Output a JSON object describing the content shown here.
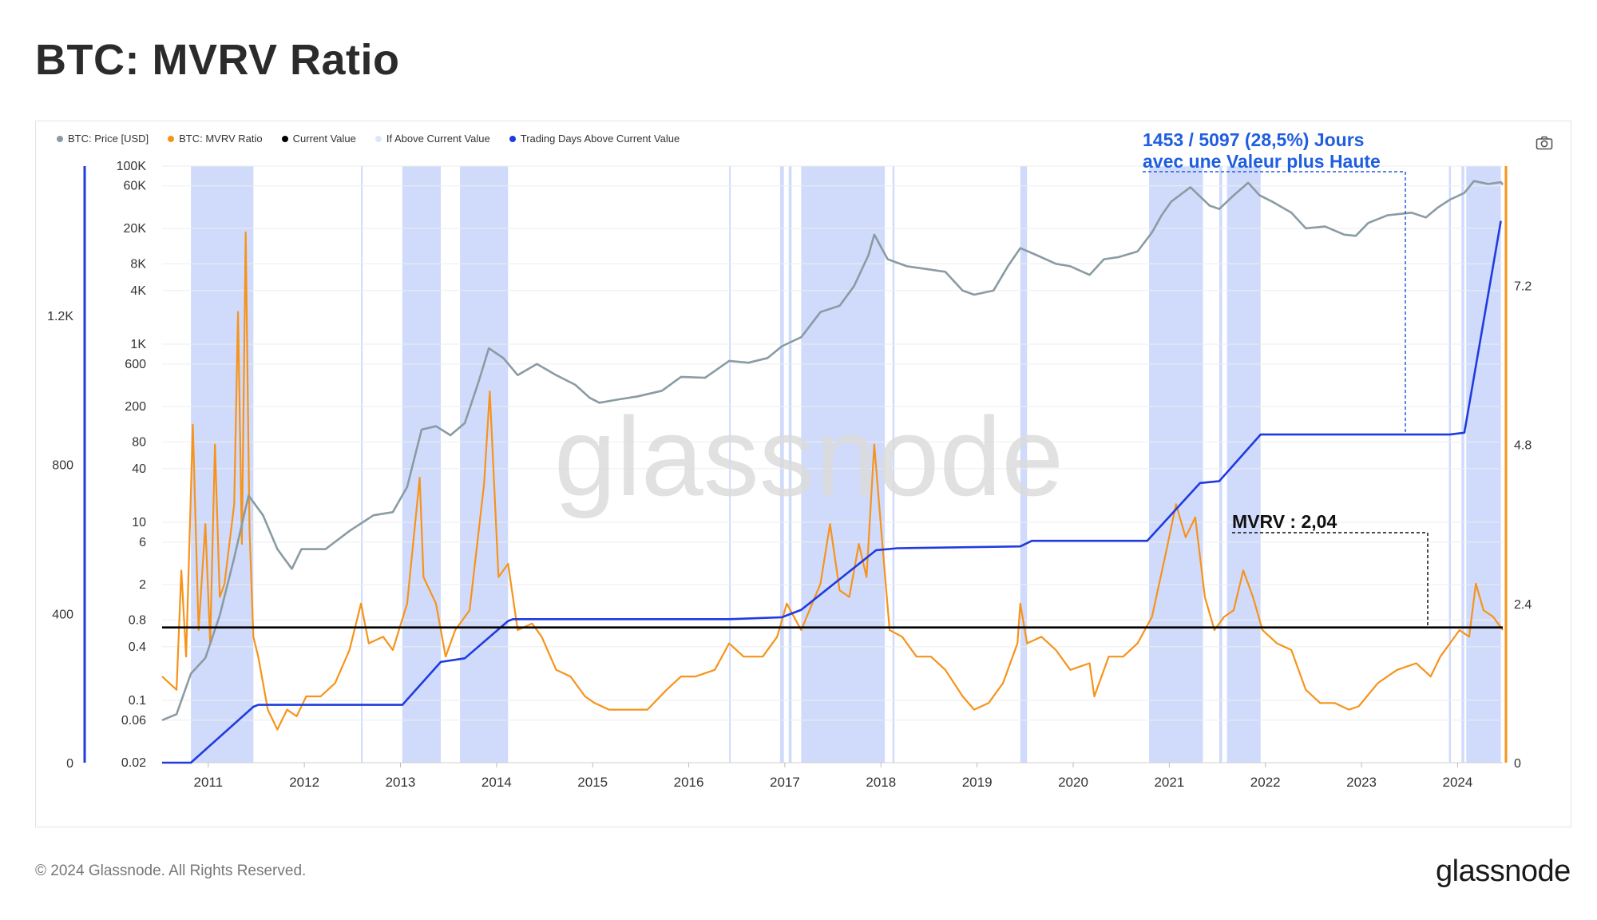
{
  "header": {
    "title": "BTC: MVRV Ratio"
  },
  "footer": {
    "copyright": "© 2024 Glassnode. All Rights Reserved.",
    "logo_text": "glassnode"
  },
  "watermark": "glassnode",
  "legend": [
    {
      "label": "BTC: Price [USD]",
      "color": "#8a9ba3"
    },
    {
      "label": "BTC: MVRV Ratio",
      "color": "#f7931a"
    },
    {
      "label": "Current Value",
      "color": "#000000"
    },
    {
      "label": "If Above Current Value",
      "color": "#dce6fb"
    },
    {
      "label": "Trading Days Above Current Value",
      "color": "#1f3be0"
    }
  ],
  "annotations": {
    "days_line1": "1453 / 5097 (28,5%) Jours",
    "days_line2": "avec une Valeur plus Haute",
    "mvrv_label": "MVRV : 2,04"
  },
  "icons": {
    "camera": "camera-icon"
  },
  "chart_data": {
    "type": "line",
    "x_ticks": [
      "2011",
      "2012",
      "2013",
      "2014",
      "2015",
      "2016",
      "2017",
      "2018",
      "2019",
      "2020",
      "2021",
      "2022",
      "2023",
      "2024"
    ],
    "price_axis": {
      "scale": "log",
      "tick_labels": [
        "100K",
        "60K",
        "20K",
        "8K",
        "4K",
        "1K",
        "600",
        "200",
        "80",
        "40",
        "10",
        "6",
        "2",
        "0.8",
        "0.4",
        "0.1",
        "0.06",
        "0.02"
      ]
    },
    "left_axis_ticks": [
      "1.2K",
      "800",
      "400",
      "0"
    ],
    "mvrv_axis_ticks": [
      "7.2",
      "4.8",
      "2.4",
      "0"
    ],
    "current_value": 2.04,
    "above_days": 1453,
    "total_days": 5097,
    "series": [
      {
        "name": "BTC: Price [USD]",
        "color": "#8a9ba3",
        "points": [
          [
            2010.55,
            0.06
          ],
          [
            2010.7,
            0.07
          ],
          [
            2010.85,
            0.2
          ],
          [
            2011.0,
            0.3
          ],
          [
            2011.15,
            0.9
          ],
          [
            2011.3,
            4
          ],
          [
            2011.45,
            20
          ],
          [
            2011.6,
            12
          ],
          [
            2011.75,
            5
          ],
          [
            2011.9,
            3
          ],
          [
            2012.0,
            5
          ],
          [
            2012.25,
            5
          ],
          [
            2012.5,
            8
          ],
          [
            2012.75,
            12
          ],
          [
            2012.95,
            13
          ],
          [
            2013.1,
            25
          ],
          [
            2013.25,
            110
          ],
          [
            2013.4,
            120
          ],
          [
            2013.55,
            95
          ],
          [
            2013.7,
            130
          ],
          [
            2013.85,
            400
          ],
          [
            2013.95,
            900
          ],
          [
            2014.1,
            700
          ],
          [
            2014.25,
            450
          ],
          [
            2014.45,
            600
          ],
          [
            2014.65,
            450
          ],
          [
            2014.85,
            350
          ],
          [
            2015.0,
            250
          ],
          [
            2015.1,
            220
          ],
          [
            2015.3,
            240
          ],
          [
            2015.5,
            260
          ],
          [
            2015.75,
            300
          ],
          [
            2015.95,
            430
          ],
          [
            2016.2,
            420
          ],
          [
            2016.45,
            650
          ],
          [
            2016.65,
            620
          ],
          [
            2016.85,
            700
          ],
          [
            2017.0,
            950
          ],
          [
            2017.2,
            1200
          ],
          [
            2017.4,
            2300
          ],
          [
            2017.6,
            2700
          ],
          [
            2017.75,
            4500
          ],
          [
            2017.9,
            10000
          ],
          [
            2017.96,
            17000
          ],
          [
            2018.1,
            9000
          ],
          [
            2018.3,
            7500
          ],
          [
            2018.5,
            7000
          ],
          [
            2018.7,
            6500
          ],
          [
            2018.88,
            4000
          ],
          [
            2019.0,
            3600
          ],
          [
            2019.2,
            4000
          ],
          [
            2019.35,
            7500
          ],
          [
            2019.48,
            12000
          ],
          [
            2019.65,
            10000
          ],
          [
            2019.85,
            8000
          ],
          [
            2020.0,
            7500
          ],
          [
            2020.2,
            6000
          ],
          [
            2020.35,
            9000
          ],
          [
            2020.5,
            9500
          ],
          [
            2020.7,
            11000
          ],
          [
            2020.85,
            18000
          ],
          [
            2020.95,
            28000
          ],
          [
            2021.05,
            40000
          ],
          [
            2021.25,
            58000
          ],
          [
            2021.45,
            36000
          ],
          [
            2021.55,
            33000
          ],
          [
            2021.7,
            47000
          ],
          [
            2021.85,
            65000
          ],
          [
            2021.97,
            47000
          ],
          [
            2022.1,
            40000
          ],
          [
            2022.3,
            30000
          ],
          [
            2022.45,
            20000
          ],
          [
            2022.65,
            21000
          ],
          [
            2022.85,
            17000
          ],
          [
            2022.97,
            16500
          ],
          [
            2023.1,
            23000
          ],
          [
            2023.3,
            28000
          ],
          [
            2023.55,
            30000
          ],
          [
            2023.7,
            26500
          ],
          [
            2023.82,
            34000
          ],
          [
            2023.95,
            42000
          ],
          [
            2024.1,
            50000
          ],
          [
            2024.2,
            68000
          ],
          [
            2024.35,
            63000
          ],
          [
            2024.48,
            66000
          ],
          [
            2024.5,
            62000
          ]
        ]
      },
      {
        "name": "BTC: MVRV Ratio",
        "color": "#f7931a",
        "points": [
          [
            2010.55,
            1.3
          ],
          [
            2010.7,
            1.1
          ],
          [
            2010.75,
            2.9
          ],
          [
            2010.8,
            1.6
          ],
          [
            2010.87,
            5.1
          ],
          [
            2010.93,
            2.0
          ],
          [
            2011.0,
            3.6
          ],
          [
            2011.05,
            1.8
          ],
          [
            2011.1,
            4.8
          ],
          [
            2011.15,
            2.5
          ],
          [
            2011.2,
            2.7
          ],
          [
            2011.3,
            3.9
          ],
          [
            2011.34,
            6.8
          ],
          [
            2011.38,
            3.3
          ],
          [
            2011.42,
            8.0
          ],
          [
            2011.46,
            3.5
          ],
          [
            2011.5,
            1.9
          ],
          [
            2011.55,
            1.6
          ],
          [
            2011.65,
            0.8
          ],
          [
            2011.75,
            0.5
          ],
          [
            2011.85,
            0.8
          ],
          [
            2011.95,
            0.7
          ],
          [
            2012.05,
            1.0
          ],
          [
            2012.2,
            1.0
          ],
          [
            2012.35,
            1.2
          ],
          [
            2012.5,
            1.7
          ],
          [
            2012.62,
            2.4
          ],
          [
            2012.7,
            1.8
          ],
          [
            2012.85,
            1.9
          ],
          [
            2012.95,
            1.7
          ],
          [
            2013.1,
            2.4
          ],
          [
            2013.23,
            4.3
          ],
          [
            2013.27,
            2.8
          ],
          [
            2013.4,
            2.4
          ],
          [
            2013.5,
            1.6
          ],
          [
            2013.6,
            2.0
          ],
          [
            2013.75,
            2.3
          ],
          [
            2013.9,
            4.2
          ],
          [
            2013.96,
            5.6
          ],
          [
            2014.05,
            2.8
          ],
          [
            2014.15,
            3.0
          ],
          [
            2014.25,
            2.0
          ],
          [
            2014.4,
            2.1
          ],
          [
            2014.5,
            1.9
          ],
          [
            2014.65,
            1.4
          ],
          [
            2014.8,
            1.3
          ],
          [
            2014.95,
            1.0
          ],
          [
            2015.05,
            0.9
          ],
          [
            2015.2,
            0.8
          ],
          [
            2015.4,
            0.8
          ],
          [
            2015.6,
            0.8
          ],
          [
            2015.8,
            1.1
          ],
          [
            2015.95,
            1.3
          ],
          [
            2016.1,
            1.3
          ],
          [
            2016.3,
            1.4
          ],
          [
            2016.45,
            1.8
          ],
          [
            2016.6,
            1.6
          ],
          [
            2016.8,
            1.6
          ],
          [
            2016.95,
            1.9
          ],
          [
            2017.05,
            2.4
          ],
          [
            2017.2,
            2.0
          ],
          [
            2017.4,
            2.7
          ],
          [
            2017.5,
            3.6
          ],
          [
            2017.6,
            2.6
          ],
          [
            2017.7,
            2.5
          ],
          [
            2017.8,
            3.3
          ],
          [
            2017.88,
            2.8
          ],
          [
            2017.96,
            4.8
          ],
          [
            2018.05,
            3.2
          ],
          [
            2018.12,
            2.0
          ],
          [
            2018.25,
            1.9
          ],
          [
            2018.4,
            1.6
          ],
          [
            2018.55,
            1.6
          ],
          [
            2018.7,
            1.4
          ],
          [
            2018.88,
            1.0
          ],
          [
            2019.0,
            0.8
          ],
          [
            2019.15,
            0.9
          ],
          [
            2019.3,
            1.2
          ],
          [
            2019.45,
            1.8
          ],
          [
            2019.48,
            2.4
          ],
          [
            2019.55,
            1.8
          ],
          [
            2019.7,
            1.9
          ],
          [
            2019.85,
            1.7
          ],
          [
            2020.0,
            1.4
          ],
          [
            2020.2,
            1.5
          ],
          [
            2020.25,
            1.0
          ],
          [
            2020.4,
            1.6
          ],
          [
            2020.55,
            1.6
          ],
          [
            2020.7,
            1.8
          ],
          [
            2020.85,
            2.2
          ],
          [
            2021.0,
            3.2
          ],
          [
            2021.1,
            3.9
          ],
          [
            2021.2,
            3.4
          ],
          [
            2021.3,
            3.7
          ],
          [
            2021.4,
            2.5
          ],
          [
            2021.5,
            2.0
          ],
          [
            2021.6,
            2.2
          ],
          [
            2021.7,
            2.3
          ],
          [
            2021.8,
            2.9
          ],
          [
            2021.9,
            2.5
          ],
          [
            2022.0,
            2.0
          ],
          [
            2022.15,
            1.8
          ],
          [
            2022.3,
            1.7
          ],
          [
            2022.45,
            1.1
          ],
          [
            2022.6,
            0.9
          ],
          [
            2022.75,
            0.9
          ],
          [
            2022.9,
            0.8
          ],
          [
            2023.0,
            0.85
          ],
          [
            2023.2,
            1.2
          ],
          [
            2023.4,
            1.4
          ],
          [
            2023.6,
            1.5
          ],
          [
            2023.75,
            1.3
          ],
          [
            2023.85,
            1.6
          ],
          [
            2023.95,
            1.8
          ],
          [
            2024.05,
            2.0
          ],
          [
            2024.15,
            1.9
          ],
          [
            2024.22,
            2.7
          ],
          [
            2024.3,
            2.3
          ],
          [
            2024.4,
            2.2
          ],
          [
            2024.5,
            2.0
          ]
        ]
      },
      {
        "name": "Trading Days Above Current Value",
        "color": "#1f3be0",
        "points": [
          [
            2010.55,
            0
          ],
          [
            2010.85,
            0
          ],
          [
            2011.5,
            150
          ],
          [
            2011.55,
            155
          ],
          [
            2012.6,
            155
          ],
          [
            2013.05,
            155
          ],
          [
            2013.45,
            270
          ],
          [
            2013.7,
            280
          ],
          [
            2014.15,
            380
          ],
          [
            2014.2,
            385
          ],
          [
            2016.45,
            385
          ],
          [
            2017.0,
            390
          ],
          [
            2017.2,
            410
          ],
          [
            2017.98,
            570
          ],
          [
            2018.2,
            575
          ],
          [
            2019.48,
            580
          ],
          [
            2019.6,
            595
          ],
          [
            2020.8,
            595
          ],
          [
            2021.35,
            750
          ],
          [
            2021.55,
            755
          ],
          [
            2021.98,
            880
          ],
          [
            2023.35,
            880
          ],
          [
            2023.95,
            880
          ],
          [
            2024.1,
            885
          ],
          [
            2024.48,
            1453
          ]
        ]
      }
    ],
    "shaded_intervals": [
      [
        2010.85,
        2011.5
      ],
      [
        2012.62,
        2012.63
      ],
      [
        2013.05,
        2013.45
      ],
      [
        2013.65,
        2014.15
      ],
      [
        2016.45,
        2016.46
      ],
      [
        2016.98,
        2017.02
      ],
      [
        2017.07,
        2017.1
      ],
      [
        2017.2,
        2018.07
      ],
      [
        2018.15,
        2018.17
      ],
      [
        2019.48,
        2019.55
      ],
      [
        2020.82,
        2021.38
      ],
      [
        2021.55,
        2021.58
      ],
      [
        2021.63,
        2021.98
      ],
      [
        2023.94,
        2023.96
      ],
      [
        2024.07,
        2024.1
      ],
      [
        2024.12,
        2024.48
      ]
    ]
  }
}
